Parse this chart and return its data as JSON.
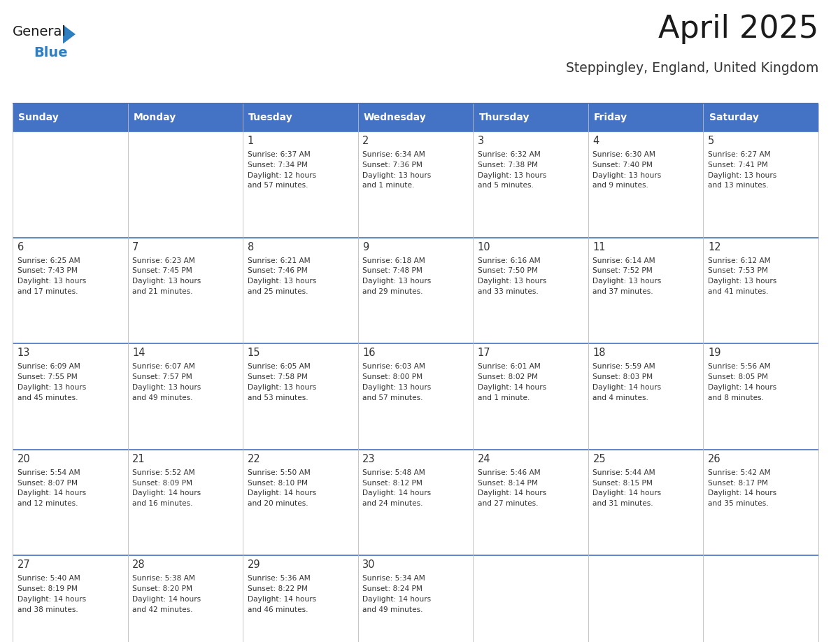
{
  "title": "April 2025",
  "subtitle": "Steppingley, England, United Kingdom",
  "header_bg": "#4472C4",
  "header_text": "#FFFFFF",
  "border_color": "#4472C4",
  "text_color": "#333333",
  "days_of_week": [
    "Sunday",
    "Monday",
    "Tuesday",
    "Wednesday",
    "Thursday",
    "Friday",
    "Saturday"
  ],
  "weeks": [
    [
      {
        "day": "",
        "content": ""
      },
      {
        "day": "",
        "content": ""
      },
      {
        "day": "1",
        "content": "Sunrise: 6:37 AM\nSunset: 7:34 PM\nDaylight: 12 hours\nand 57 minutes."
      },
      {
        "day": "2",
        "content": "Sunrise: 6:34 AM\nSunset: 7:36 PM\nDaylight: 13 hours\nand 1 minute."
      },
      {
        "day": "3",
        "content": "Sunrise: 6:32 AM\nSunset: 7:38 PM\nDaylight: 13 hours\nand 5 minutes."
      },
      {
        "day": "4",
        "content": "Sunrise: 6:30 AM\nSunset: 7:40 PM\nDaylight: 13 hours\nand 9 minutes."
      },
      {
        "day": "5",
        "content": "Sunrise: 6:27 AM\nSunset: 7:41 PM\nDaylight: 13 hours\nand 13 minutes."
      }
    ],
    [
      {
        "day": "6",
        "content": "Sunrise: 6:25 AM\nSunset: 7:43 PM\nDaylight: 13 hours\nand 17 minutes."
      },
      {
        "day": "7",
        "content": "Sunrise: 6:23 AM\nSunset: 7:45 PM\nDaylight: 13 hours\nand 21 minutes."
      },
      {
        "day": "8",
        "content": "Sunrise: 6:21 AM\nSunset: 7:46 PM\nDaylight: 13 hours\nand 25 minutes."
      },
      {
        "day": "9",
        "content": "Sunrise: 6:18 AM\nSunset: 7:48 PM\nDaylight: 13 hours\nand 29 minutes."
      },
      {
        "day": "10",
        "content": "Sunrise: 6:16 AM\nSunset: 7:50 PM\nDaylight: 13 hours\nand 33 minutes."
      },
      {
        "day": "11",
        "content": "Sunrise: 6:14 AM\nSunset: 7:52 PM\nDaylight: 13 hours\nand 37 minutes."
      },
      {
        "day": "12",
        "content": "Sunrise: 6:12 AM\nSunset: 7:53 PM\nDaylight: 13 hours\nand 41 minutes."
      }
    ],
    [
      {
        "day": "13",
        "content": "Sunrise: 6:09 AM\nSunset: 7:55 PM\nDaylight: 13 hours\nand 45 minutes."
      },
      {
        "day": "14",
        "content": "Sunrise: 6:07 AM\nSunset: 7:57 PM\nDaylight: 13 hours\nand 49 minutes."
      },
      {
        "day": "15",
        "content": "Sunrise: 6:05 AM\nSunset: 7:58 PM\nDaylight: 13 hours\nand 53 minutes."
      },
      {
        "day": "16",
        "content": "Sunrise: 6:03 AM\nSunset: 8:00 PM\nDaylight: 13 hours\nand 57 minutes."
      },
      {
        "day": "17",
        "content": "Sunrise: 6:01 AM\nSunset: 8:02 PM\nDaylight: 14 hours\nand 1 minute."
      },
      {
        "day": "18",
        "content": "Sunrise: 5:59 AM\nSunset: 8:03 PM\nDaylight: 14 hours\nand 4 minutes."
      },
      {
        "day": "19",
        "content": "Sunrise: 5:56 AM\nSunset: 8:05 PM\nDaylight: 14 hours\nand 8 minutes."
      }
    ],
    [
      {
        "day": "20",
        "content": "Sunrise: 5:54 AM\nSunset: 8:07 PM\nDaylight: 14 hours\nand 12 minutes."
      },
      {
        "day": "21",
        "content": "Sunrise: 5:52 AM\nSunset: 8:09 PM\nDaylight: 14 hours\nand 16 minutes."
      },
      {
        "day": "22",
        "content": "Sunrise: 5:50 AM\nSunset: 8:10 PM\nDaylight: 14 hours\nand 20 minutes."
      },
      {
        "day": "23",
        "content": "Sunrise: 5:48 AM\nSunset: 8:12 PM\nDaylight: 14 hours\nand 24 minutes."
      },
      {
        "day": "24",
        "content": "Sunrise: 5:46 AM\nSunset: 8:14 PM\nDaylight: 14 hours\nand 27 minutes."
      },
      {
        "day": "25",
        "content": "Sunrise: 5:44 AM\nSunset: 8:15 PM\nDaylight: 14 hours\nand 31 minutes."
      },
      {
        "day": "26",
        "content": "Sunrise: 5:42 AM\nSunset: 8:17 PM\nDaylight: 14 hours\nand 35 minutes."
      }
    ],
    [
      {
        "day": "27",
        "content": "Sunrise: 5:40 AM\nSunset: 8:19 PM\nDaylight: 14 hours\nand 38 minutes."
      },
      {
        "day": "28",
        "content": "Sunrise: 5:38 AM\nSunset: 8:20 PM\nDaylight: 14 hours\nand 42 minutes."
      },
      {
        "day": "29",
        "content": "Sunrise: 5:36 AM\nSunset: 8:22 PM\nDaylight: 14 hours\nand 46 minutes."
      },
      {
        "day": "30",
        "content": "Sunrise: 5:34 AM\nSunset: 8:24 PM\nDaylight: 14 hours\nand 49 minutes."
      },
      {
        "day": "",
        "content": ""
      },
      {
        "day": "",
        "content": ""
      },
      {
        "day": "",
        "content": ""
      }
    ]
  ],
  "logo_general_color": "#1a1a1a",
  "logo_blue_color": "#2e7fc1",
  "triangle_color": "#2e7fc1",
  "fig_width": 11.88,
  "fig_height": 9.18,
  "dpi": 100
}
